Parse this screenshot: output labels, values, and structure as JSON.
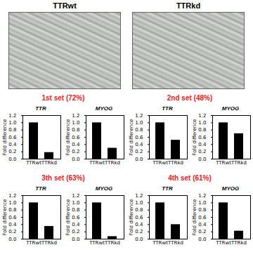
{
  "images": [
    {
      "label": "TTRwt"
    },
    {
      "label": "TTRkd"
    }
  ],
  "set_titles": [
    "1st set (72%)",
    "2nd set (48%)",
    "3th set (63%)",
    "4th set (61%)"
  ],
  "set_title_color": "#e8201e",
  "chart_data": [
    {
      "type": "bar",
      "title": "TTR",
      "categories": [
        "TTRwt",
        "TTRkd"
      ],
      "values": [
        1.0,
        0.18
      ],
      "color": "#000000",
      "ylabel": "Fold difference",
      "ylim": [
        0,
        1.2
      ],
      "yticks": [
        {
          "value": 0,
          "label": "0.0"
        },
        {
          "value": 0.2,
          "label": "0.2"
        },
        {
          "value": 0.4,
          "label": "0.4"
        },
        {
          "value": 0.6,
          "label": "0.6"
        },
        {
          "value": 0.8,
          "label": "0.8"
        },
        {
          "value": 1,
          "label": "1.0"
        },
        {
          "value": 1.2,
          "label": "1.2"
        }
      ]
    },
    {
      "type": "bar",
      "title": "MYOG",
      "categories": [
        "TTRwt",
        "TTRkd"
      ],
      "values": [
        1.0,
        0.3
      ],
      "color": "#000000",
      "ylabel": "Fold difference",
      "ylim": [
        0,
        1.2
      ],
      "yticks": [
        {
          "value": 0,
          "label": "0.0"
        },
        {
          "value": 0.2,
          "label": "0.2"
        },
        {
          "value": 0.4,
          "label": "0.4"
        },
        {
          "value": 0.6,
          "label": "0.6"
        },
        {
          "value": 0.8,
          "label": "0.8"
        },
        {
          "value": 1,
          "label": "1.0"
        },
        {
          "value": 1.2,
          "label": "1.2"
        }
      ]
    },
    {
      "type": "bar",
      "title": "TTR",
      "categories": [
        "TTRwt",
        "TTRkd"
      ],
      "values": [
        1.0,
        0.52
      ],
      "color": "#000000",
      "ylabel": "Fold difference",
      "ylim": [
        0,
        1.2
      ],
      "yticks": [
        {
          "value": 0,
          "label": "0.0"
        },
        {
          "value": 0.2,
          "label": "0.2"
        },
        {
          "value": 0.4,
          "label": "0.4"
        },
        {
          "value": 0.6,
          "label": "0.6"
        },
        {
          "value": 0.8,
          "label": "0.8"
        },
        {
          "value": 1,
          "label": "1.0"
        },
        {
          "value": 1.2,
          "label": "1.2"
        }
      ]
    },
    {
      "type": "bar",
      "title": "MYOG",
      "categories": [
        "TTRwt",
        "TTRkd"
      ],
      "values": [
        1.0,
        0.7
      ],
      "color": "#000000",
      "ylabel": "Fold difference",
      "ylim": [
        0,
        1.2
      ],
      "yticks": [
        {
          "value": 0,
          "label": "0.0"
        },
        {
          "value": 0.2,
          "label": "0.2"
        },
        {
          "value": 0.4,
          "label": "0.4"
        },
        {
          "value": 0.6,
          "label": "0.6"
        },
        {
          "value": 0.8,
          "label": "0.8"
        },
        {
          "value": 1,
          "label": "1.0"
        },
        {
          "value": 1.2,
          "label": "1.2"
        }
      ]
    },
    {
      "type": "bar",
      "title": "TTR",
      "categories": [
        "TTRwt",
        "TTRkd"
      ],
      "values": [
        1.0,
        0.35
      ],
      "color": "#000000",
      "ylabel": "Fold difference",
      "ylim": [
        0,
        1.2
      ],
      "yticks": [
        {
          "value": 0,
          "label": "0.0"
        },
        {
          "value": 0.2,
          "label": "0.2"
        },
        {
          "value": 0.4,
          "label": "0.4"
        },
        {
          "value": 0.6,
          "label": "0.6"
        },
        {
          "value": 0.8,
          "label": "0.8"
        },
        {
          "value": 1,
          "label": "1.0"
        },
        {
          "value": 1.2,
          "label": "1.2"
        }
      ]
    },
    {
      "type": "bar",
      "title": "MYOG",
      "categories": [
        "TTRwt",
        "TTRkd"
      ],
      "values": [
        1.0,
        0.07
      ],
      "color": "#000000",
      "ylabel": "Fold difference",
      "ylim": [
        0,
        1.2
      ],
      "yticks": [
        {
          "value": 0,
          "label": "0.0"
        },
        {
          "value": 0.2,
          "label": "0.2"
        },
        {
          "value": 0.4,
          "label": "0.4"
        },
        {
          "value": 0.6,
          "label": "0.6"
        },
        {
          "value": 0.8,
          "label": "0.8"
        },
        {
          "value": 1,
          "label": "1.0"
        },
        {
          "value": 1.2,
          "label": "1.2"
        }
      ]
    },
    {
      "type": "bar",
      "title": "TTR",
      "categories": [
        "TTRwt",
        "TTRkd"
      ],
      "values": [
        1.0,
        0.4
      ],
      "color": "#000000",
      "ylabel": "Fold difference",
      "ylim": [
        0,
        1.2
      ],
      "yticks": [
        {
          "value": 0,
          "label": "0.0"
        },
        {
          "value": 0.2,
          "label": "0.2"
        },
        {
          "value": 0.4,
          "label": "0.4"
        },
        {
          "value": 0.6,
          "label": "0.6"
        },
        {
          "value": 0.8,
          "label": "0.8"
        },
        {
          "value": 1,
          "label": "1.0"
        },
        {
          "value": 1.2,
          "label": "1.2"
        }
      ]
    },
    {
      "type": "bar",
      "title": "MYOG",
      "categories": [
        "TTRwt",
        "TTRkd"
      ],
      "values": [
        1.0,
        0.22
      ],
      "color": "#000000",
      "ylabel": "Fold difference",
      "ylim": [
        0,
        1.2
      ],
      "yticks": [
        {
          "value": 0,
          "label": "0.0"
        },
        {
          "value": 0.2,
          "label": "0.2"
        },
        {
          "value": 0.4,
          "label": "0.4"
        },
        {
          "value": 0.6,
          "label": "0.6"
        },
        {
          "value": 0.8,
          "label": "0.8"
        },
        {
          "value": 1,
          "label": "1.0"
        },
        {
          "value": 1.2,
          "label": "1.2"
        }
      ]
    }
  ]
}
